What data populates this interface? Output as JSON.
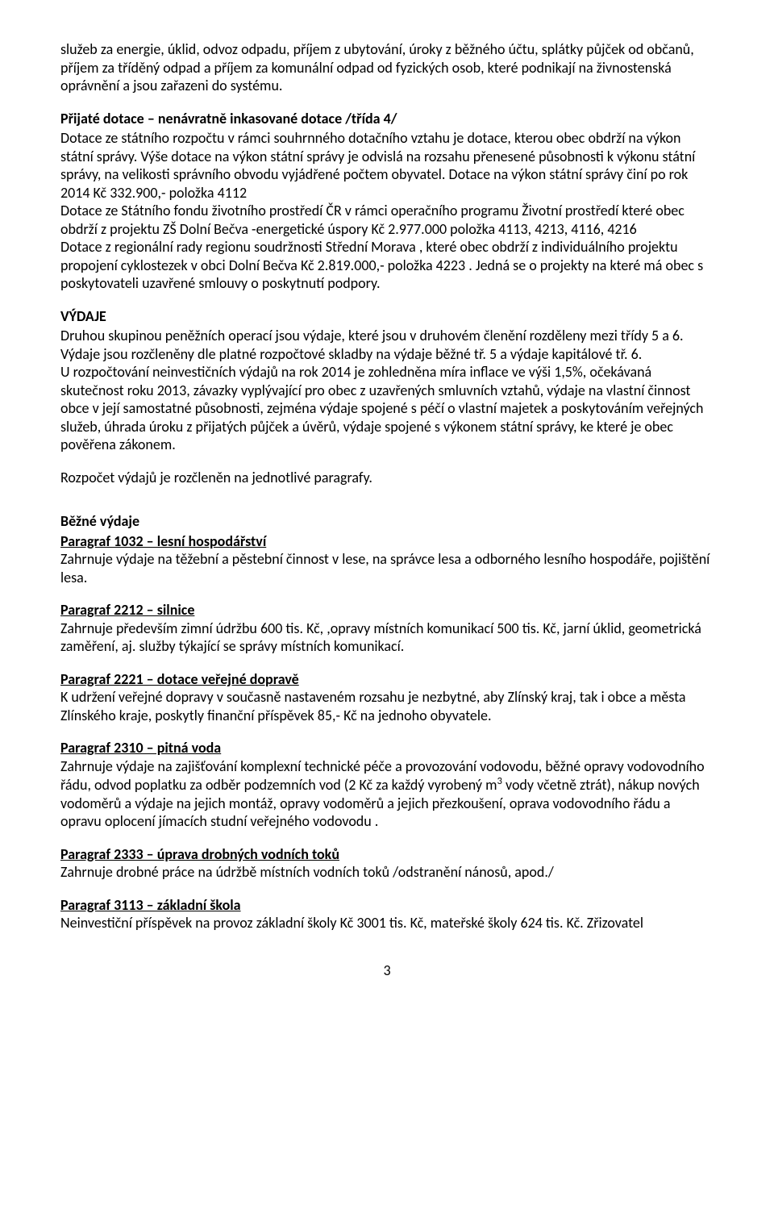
{
  "intro": {
    "p1": "služeb za energie, úklid, odvoz odpadu, příjem z ubytování, úroky z běžného účtu, splátky půjček od občanů, příjem za tříděný odpad a příjem za komunální odpad od fyzických osob, které podnikají na živnostenská oprávnění a jsou zařazeni do systému."
  },
  "dotace": {
    "title": "Přijaté dotace – nenávratně inkasované dotace /třída 4/",
    "body": "Dotace ze státního rozpočtu v rámci souhrnného dotačního vztahu je dotace, kterou obec obdrží na výkon státní správy. Výše dotace na výkon státní správy je odvislá na rozsahu přenesené působnosti k výkonu státní správy, na velikosti správního obvodu vyjádřené počtem obyvatel. Dotace na výkon státní správy  činí po rok 2014 Kč 332.900,- položka 4112",
    "body2": "Dotace ze Státního fondu životního prostředí ČR v rámci operačního programu Životní prostředí které obec obdrží z projektu  ZŠ Dolní Bečva -energetické úspory Kč 2.977.000 položka 4113, 4213, 4116, 4216",
    "body3": "Dotace z regionální rady regionu soudržnosti Střední Morava , které obec obdrží z individuálního projektu propojení cyklostezek v obci Dolní Bečva Kč 2.819.000,-  položka   4223 . Jedná se o projekty na které má  obec s poskytovateli uzavřené smlouvy o poskytnutí podpory."
  },
  "vydaje": {
    "title": "VÝDAJE",
    "p1": "Druhou skupinou peněžních operací jsou výdaje, které jsou v druhovém členění rozděleny mezi třídy 5 a 6. Výdaje jsou rozčleněny dle platné rozpočtové skladby na výdaje běžné tř. 5 a výdaje kapitálové tř. 6.",
    "p2": "U rozpočtování neinvestičních výdajů na rok 2014 je zohledněna míra inflace ve výši 1,5%, očekávaná skutečnost roku 2013, závazky vyplývající pro obec z uzavřených smluvních vztahů, výdaje na vlastní činnost obce v její samostatné působnosti, zejména výdaje spojené s péčí o vlastní majetek a poskytováním veřejných služeb, úhrada úroku z přijatých půjček a úvěrů, výdaje spojené s výkonem státní správy, ke které je obec pověřena zákonem.",
    "p3": "Rozpočet výdajů je rozčleněn na jednotlivé paragrafy."
  },
  "bezne": {
    "title": "Běžné výdaje"
  },
  "sec1032": {
    "title": "Paragraf 1032 – lesní hospodářství",
    "body": "Zahrnuje výdaje na těžební a pěstební činnost v lese, na správce lesa a odborného lesního hospodáře, pojištění lesa."
  },
  "sec2212": {
    "title": "Paragraf 2212 – silnice",
    "body": "Zahrnuje především zimní údržbu 600 tis. Kč, ,opravy místních komunikací 500 tis. Kč, jarní úklid, geometrická zaměření, aj. služby týkající se správy místních komunikací."
  },
  "sec2221": {
    "title": "Paragraf 2221 – dotace veřejné dopravě",
    "body": "K udržení veřejné dopravy v současně nastaveném rozsahu je nezbytné, aby Zlínský kraj, tak i obce a města Zlínského kraje, poskytly finanční příspěvek 85,- Kč na jednoho obyvatele."
  },
  "sec2310": {
    "title": "Paragraf 2310 – pitná voda",
    "body_a": "Zahrnuje výdaje na zajišťování komplexní technické péče a provozování vodovodu, běžné opravy vodovodního řádu,  odvod poplatku za odběr podzemních vod (2 Kč za každý vyrobený m",
    "body_b": " vody včetně ztrát), nákup nových vodoměrů a výdaje na jejich montáž, opravy vodoměrů a jejich přezkoušení,  oprava vodovodního řádu a opravu oplocení jímacích studní veřejného vodovodu ."
  },
  "sec2333": {
    "title": "Paragraf 2333 – úprava drobných vodních toků",
    "body": "Zahrnuje drobné práce na údržbě místních vodních toků /odstranění nánosů, apod./"
  },
  "sec3113": {
    "title": "Paragraf 3113 – základní škola",
    "body": "Neinvestiční příspěvek na provoz základní školy Kč 3001 tis. Kč, mateřské školy 624 tis. Kč. Zřizovatel"
  },
  "pagenum": "3"
}
